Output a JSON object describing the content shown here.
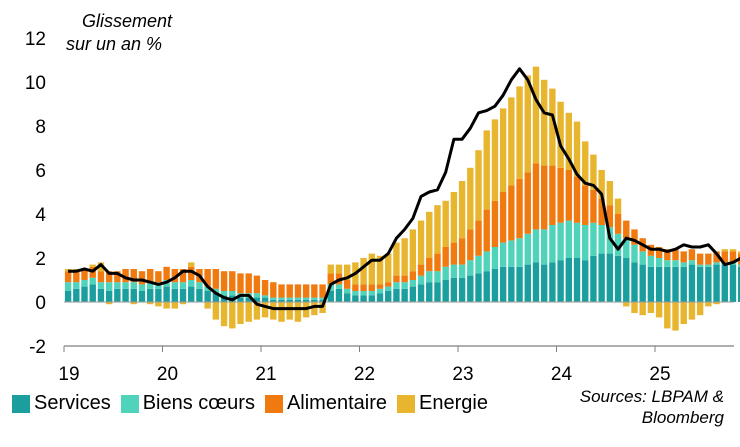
{
  "chart_data": {
    "type": "bar",
    "subtype": "stacked-bar-with-line",
    "annotation": [
      "Glissement",
      "sur un an %"
    ],
    "x_tick_labels": [
      "19",
      "20",
      "21",
      "22",
      "23",
      "24",
      "25"
    ],
    "y_tick_labels": [
      "12",
      "10",
      "8",
      "6",
      "4",
      "2",
      "0",
      "-2"
    ],
    "ylim": [
      -2,
      12
    ],
    "y_ticks": [
      -2,
      0,
      2,
      4,
      6,
      8,
      10,
      12
    ],
    "start_year": 2019,
    "grid": false,
    "legend_position": "bottom-left",
    "series": [
      {
        "name": "Services",
        "color": "#1a9e9e",
        "values": [
          0.5,
          0.6,
          0.7,
          0.8,
          0.6,
          0.5,
          0.6,
          0.6,
          0.6,
          0.5,
          0.6,
          0.6,
          0.7,
          0.6,
          0.6,
          0.7,
          0.6,
          0.5,
          0.4,
          0.3,
          0.3,
          0.2,
          0.2,
          0.2,
          0.2,
          0.1,
          0.1,
          0.1,
          0.1,
          0.1,
          0.1,
          0.1,
          0.5,
          0.6,
          0.4,
          0.3,
          0.3,
          0.3,
          0.4,
          0.5,
          0.6,
          0.6,
          0.7,
          0.8,
          0.9,
          0.9,
          1.0,
          1.1,
          1.1,
          1.2,
          1.3,
          1.4,
          1.5,
          1.6,
          1.6,
          1.6,
          1.7,
          1.8,
          1.7,
          1.8,
          1.9,
          2.0,
          2.0,
          1.9,
          2.1,
          2.2,
          2.2,
          2.1,
          2.0,
          1.8,
          1.7,
          1.6,
          1.6,
          1.6,
          1.6,
          1.6,
          1.7,
          1.6,
          1.6,
          1.7,
          1.7,
          1.7,
          1.6,
          1.6,
          1.6,
          1.5,
          1.5,
          1.6,
          1.6,
          1.6,
          1.4,
          1.4,
          1.3,
          1.3,
          1.4,
          1.4,
          1.4,
          1.4,
          1.4,
          1.4,
          1.4
        ]
      },
      {
        "name": "Biens cœurs",
        "color": "#4fd3bb",
        "values": [
          0.4,
          0.3,
          0.3,
          0.3,
          0.3,
          0.4,
          0.3,
          0.3,
          0.3,
          0.3,
          0.3,
          0.3,
          0.3,
          0.3,
          0.3,
          0.3,
          0.3,
          0.2,
          0.2,
          0.2,
          0.2,
          0.2,
          0.2,
          0.2,
          0.1,
          0.1,
          0.1,
          0.1,
          0.1,
          0.1,
          0.1,
          0.1,
          0.3,
          0.2,
          0.2,
          0.2,
          0.2,
          0.2,
          0.2,
          0.2,
          0.3,
          0.3,
          0.3,
          0.4,
          0.5,
          0.5,
          0.6,
          0.6,
          0.6,
          0.7,
          0.8,
          0.9,
          1.0,
          1.1,
          1.2,
          1.3,
          1.4,
          1.5,
          1.6,
          1.7,
          1.7,
          1.7,
          1.6,
          1.6,
          1.5,
          1.3,
          1.2,
          1.0,
          0.9,
          0.8,
          0.6,
          0.5,
          0.4,
          0.3,
          0.3,
          0.2,
          0.2,
          0.1,
          0.1,
          0.1,
          0.1,
          0.1,
          0.1,
          0.1,
          0.1,
          0.1,
          0.1,
          0.1,
          0.1,
          0.1,
          0.1,
          0.1,
          0.1,
          0.1,
          0.1,
          0.1,
          0.1,
          0.1,
          0.1,
          0.1,
          0.1
        ]
      },
      {
        "name": "Alimentaire",
        "color": "#f07a10",
        "values": [
          0.5,
          0.5,
          0.5,
          0.5,
          0.5,
          0.5,
          0.5,
          0.6,
          0.6,
          0.6,
          0.6,
          0.5,
          0.6,
          0.6,
          0.6,
          0.6,
          0.6,
          0.8,
          0.9,
          0.9,
          0.9,
          0.9,
          0.9,
          0.8,
          0.7,
          0.7,
          0.6,
          0.6,
          0.6,
          0.6,
          0.6,
          0.6,
          0.5,
          0.5,
          0.4,
          0.3,
          0.3,
          0.3,
          0.2,
          0.2,
          0.3,
          0.3,
          0.4,
          0.5,
          0.6,
          0.8,
          0.9,
          1.0,
          1.2,
          1.4,
          1.6,
          1.9,
          2.1,
          2.3,
          2.5,
          2.7,
          2.8,
          3.0,
          2.9,
          2.7,
          2.5,
          2.3,
          2.1,
          1.8,
          1.5,
          1.2,
          1.0,
          0.9,
          0.8,
          0.7,
          0.6,
          0.5,
          0.5,
          0.5,
          0.5,
          0.5,
          0.5,
          0.5,
          0.5,
          0.5,
          0.5,
          0.5,
          0.5,
          0.5,
          0.5,
          0.5,
          0.5,
          0.5,
          0.5,
          0.5,
          0.5,
          0.5,
          0.5,
          0.5,
          0.5,
          0.5,
          0.5,
          0.5,
          0.5,
          0.5,
          0.5
        ]
      },
      {
        "name": "Energie",
        "color": "#e8b52e",
        "values": [
          0.1,
          0.1,
          0.0,
          0.1,
          0.4,
          -0.1,
          0.0,
          0.0,
          -0.1,
          0.0,
          -0.1,
          -0.2,
          -0.3,
          -0.3,
          -0.1,
          0.2,
          0.0,
          -0.3,
          -0.8,
          -1.1,
          -1.2,
          -1.0,
          -0.9,
          -0.8,
          -0.7,
          -0.8,
          -0.9,
          -0.8,
          -0.9,
          -0.7,
          -0.6,
          -0.5,
          0.4,
          0.4,
          0.7,
          1.0,
          1.2,
          1.4,
          1.3,
          1.3,
          1.5,
          1.7,
          1.9,
          2.0,
          2.1,
          2.2,
          2.1,
          2.3,
          2.6,
          2.8,
          3.2,
          3.6,
          3.7,
          3.8,
          4.0,
          4.2,
          4.4,
          4.4,
          3.9,
          3.5,
          3.0,
          2.6,
          2.5,
          2.0,
          1.6,
          1.3,
          1.1,
          0.7,
          -0.2,
          -0.5,
          -0.6,
          -0.5,
          -0.7,
          -1.2,
          -1.3,
          -1.0,
          -0.8,
          -0.6,
          -0.2,
          -0.1,
          0.1,
          0.1,
          0.1,
          0.1,
          0.1,
          -0.4,
          -0.6,
          -0.4,
          -0.1,
          0.1,
          0.2,
          -0.1,
          -0.3,
          -0.4,
          -0.4,
          -0.3,
          -0.3,
          -0.2,
          -0.2,
          -0.1,
          -0.1
        ]
      },
      {
        "name": "",
        "color": "#000000",
        "values": [
          1.4,
          1.4,
          1.5,
          1.4,
          1.7,
          1.3,
          1.3,
          1.1,
          1.0,
          1.0,
          0.9,
          0.8,
          0.9,
          1.1,
          1.4,
          1.4,
          1.2,
          0.7,
          0.4,
          0.2,
          0.1,
          0.3,
          0.3,
          -0.1,
          -0.2,
          -0.3,
          -0.3,
          -0.3,
          -0.3,
          -0.3,
          -0.2,
          -0.2,
          0.8,
          1.0,
          1.1,
          1.3,
          1.6,
          1.9,
          1.9,
          2.2,
          2.9,
          3.3,
          3.8,
          4.8,
          5.0,
          5.1,
          5.9,
          7.4,
          7.4,
          7.9,
          8.6,
          8.7,
          8.9,
          9.4,
          10.1,
          10.6,
          10.1,
          9.2,
          8.6,
          8.5,
          7.1,
          6.5,
          5.8,
          5.4,
          5.3,
          4.9,
          2.9,
          2.4,
          2.9,
          2.8,
          2.6,
          2.4,
          2.4,
          2.3,
          2.4,
          2.6,
          2.5,
          2.5,
          2.6,
          2.2,
          1.7,
          1.8,
          2.0,
          2.3,
          2.4,
          2.5,
          2.3,
          2.2,
          2.3,
          2.1,
          2.2,
          1.9,
          1.9,
          2.0,
          2.0,
          2.0,
          2.2,
          2.3,
          2.3,
          2.4,
          2.3
        ]
      }
    ]
  },
  "source": [
    "Sources: LBPAM &",
    "Bloomberg"
  ]
}
